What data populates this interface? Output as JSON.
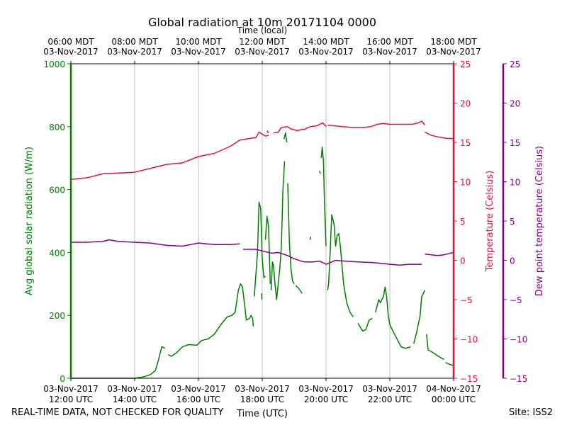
{
  "footer": {
    "left_note": "REAL-TIME DATA, NOT CHECKED FOR QUALITY",
    "site": "Site: ISS2"
  },
  "chart_data": {
    "type": "line",
    "title": "Global radiation at 10m 20171104 0000",
    "x_bottom": {
      "label": "Time (UTC)",
      "range_hours_utc": [
        12,
        24
      ],
      "ticks": [
        {
          "hour": 12,
          "l1": "03-Nov-2017",
          "l2": "12:00 UTC"
        },
        {
          "hour": 14,
          "l1": "03-Nov-2017",
          "l2": "14:00 UTC"
        },
        {
          "hour": 16,
          "l1": "03-Nov-2017",
          "l2": "16:00 UTC"
        },
        {
          "hour": 18,
          "l1": "03-Nov-2017",
          "l2": "18:00 UTC"
        },
        {
          "hour": 20,
          "l1": "03-Nov-2017",
          "l2": "20:00 UTC"
        },
        {
          "hour": 22,
          "l1": "03-Nov-2017",
          "l2": "22:00 UTC"
        },
        {
          "hour": 24,
          "l1": "04-Nov-2017",
          "l2": "00:00 UTC"
        }
      ]
    },
    "x_top": {
      "label": "Time (local)",
      "ticks": [
        {
          "hour": 12,
          "l1": "06:00 MDT",
          "l2": "03-Nov-2017"
        },
        {
          "hour": 14,
          "l1": "08:00 MDT",
          "l2": "03-Nov-2017"
        },
        {
          "hour": 16,
          "l1": "10:00 MDT",
          "l2": "03-Nov-2017"
        },
        {
          "hour": 18,
          "l1": "12:00 MDT",
          "l2": "03-Nov-2017"
        },
        {
          "hour": 20,
          "l1": "14:00 MDT",
          "l2": "03-Nov-2017"
        },
        {
          "hour": 22,
          "l1": "16:00 MDT",
          "l2": "03-Nov-2017"
        },
        {
          "hour": 24,
          "l1": "18:00 MDT",
          "l2": "03-Nov-2017"
        }
      ]
    },
    "grid": "vertical",
    "axes": [
      {
        "id": "rad",
        "label": "Avg global solar radiation (W/m)",
        "color": "#008000",
        "side": "left",
        "range": [
          0,
          1000
        ],
        "ticks": [
          "0",
          "200",
          "400",
          "600",
          "800",
          "1000"
        ]
      },
      {
        "id": "temp",
        "label": "Temperature (Celsius)",
        "color": "#dc143c",
        "side": "right",
        "range": [
          -15,
          25
        ],
        "ticks": [
          "−15",
          "−10",
          "−5",
          "0",
          "5",
          "10",
          "15",
          "20",
          "25"
        ]
      },
      {
        "id": "dew",
        "label": "Dew point temperature (Celsius)",
        "color": "#800080",
        "side": "far-right",
        "range": [
          -15,
          25
        ],
        "ticks": [
          "−15",
          "−10",
          "−5",
          "0",
          "5",
          "10",
          "15",
          "20",
          "25"
        ]
      }
    ],
    "series": [
      {
        "name": "Avg global solar radiation",
        "axis": "rad",
        "color": "#008000",
        "segments": [
          [
            [
              12.0,
              0
            ],
            [
              14.0,
              0
            ],
            [
              14.3,
              5
            ],
            [
              14.5,
              12
            ],
            [
              14.65,
              25
            ],
            [
              14.75,
              60
            ],
            [
              14.85,
              100
            ],
            [
              14.95,
              95
            ]
          ],
          [
            [
              15.05,
              75
            ],
            [
              15.15,
              70
            ],
            [
              15.3,
              80
            ],
            [
              15.5,
              100
            ],
            [
              15.7,
              107
            ],
            [
              15.95,
              105
            ],
            [
              16.1,
              120
            ],
            [
              16.3,
              125
            ],
            [
              16.5,
              140
            ],
            [
              16.7,
              170
            ],
            [
              16.9,
              195
            ],
            [
              17.05,
              200
            ],
            [
              17.15,
              210
            ],
            [
              17.25,
              280
            ],
            [
              17.32,
              300
            ],
            [
              17.38,
              290
            ],
            [
              17.45,
              230
            ],
            [
              17.5,
              185
            ],
            [
              17.6,
              190
            ],
            [
              17.65,
              200
            ],
            [
              17.7,
              190
            ],
            [
              17.72,
              165
            ]
          ],
          [
            [
              17.75,
              260
            ],
            [
              17.85,
              400
            ],
            [
              17.9,
              560
            ],
            [
              17.95,
              540
            ],
            [
              18.0,
              380
            ],
            [
              18.05,
              320
            ],
            [
              18.1,
              325
            ]
          ],
          [
            [
              17.98,
              270
            ],
            [
              17.99,
              250
            ]
          ],
          [
            [
              18.1,
              440
            ],
            [
              18.15,
              515
            ],
            [
              18.2,
              480
            ],
            [
              18.25,
              300
            ]
          ],
          [
            [
              18.28,
              280
            ],
            [
              18.32,
              370
            ],
            [
              18.35,
              360
            ],
            [
              18.4,
              300
            ],
            [
              18.45,
              250
            ],
            [
              18.5,
              300
            ],
            [
              18.55,
              350
            ],
            [
              18.6,
              420
            ],
            [
              18.65,
              600
            ],
            [
              18.7,
              690
            ]
          ],
          [
            [
              18.68,
              760
            ],
            [
              18.73,
              780
            ],
            [
              18.77,
              750
            ]
          ],
          [
            [
              18.8,
              620
            ],
            [
              18.85,
              430
            ],
            [
              18.9,
              350
            ],
            [
              18.95,
              310
            ],
            [
              19.0,
              300
            ]
          ],
          [
            [
              19.05,
              295
            ],
            [
              19.15,
              285
            ],
            [
              19.25,
              270
            ]
          ],
          [
            [
              19.5,
              440
            ],
            [
              19.52,
              450
            ]
          ],
          [
            [
              19.8,
              660
            ],
            [
              19.82,
              650
            ]
          ],
          [
            [
              19.85,
              700
            ],
            [
              19.88,
              735
            ],
            [
              19.92,
              690
            ],
            [
              19.95,
              560
            ],
            [
              20.0,
              420
            ]
          ],
          [
            [
              20.05,
              280
            ],
            [
              20.08,
              300
            ],
            [
              20.12,
              380
            ],
            [
              20.18,
              520
            ],
            [
              20.25,
              490
            ],
            [
              20.3,
              420
            ],
            [
              20.35,
              455
            ],
            [
              20.4,
              460
            ],
            [
              20.45,
              420
            ],
            [
              20.55,
              300
            ],
            [
              20.65,
              240
            ],
            [
              20.75,
              210
            ],
            [
              20.85,
              195
            ]
          ],
          [
            [
              21.0,
              175
            ],
            [
              21.15,
              150
            ],
            [
              21.25,
              155
            ],
            [
              21.35,
              185
            ],
            [
              21.45,
              190
            ]
          ],
          [
            [
              21.55,
              210
            ],
            [
              21.65,
              250
            ],
            [
              21.7,
              240
            ],
            [
              21.8,
              260
            ],
            [
              21.85,
              290
            ],
            [
              21.9,
              260
            ],
            [
              21.95,
              200
            ],
            [
              22.0,
              170
            ],
            [
              22.1,
              150
            ],
            [
              22.2,
              130
            ],
            [
              22.35,
              100
            ],
            [
              22.5,
              95
            ],
            [
              22.65,
              100
            ]
          ],
          [
            [
              22.75,
              110
            ],
            [
              22.85,
              150
            ],
            [
              22.95,
              200
            ],
            [
              23.0,
              260
            ],
            [
              23.1,
              280
            ]
          ],
          [
            [
              23.15,
              140
            ],
            [
              23.2,
              90
            ],
            [
              23.3,
              85
            ],
            [
              23.45,
              75
            ],
            [
              23.6,
              65
            ],
            [
              23.7,
              60
            ]
          ],
          [
            [
              23.75,
              50
            ],
            [
              23.85,
              45
            ],
            [
              24.0,
              40
            ]
          ]
        ]
      },
      {
        "name": "Temperature",
        "axis": "temp",
        "color": "#dc143c",
        "segments": [
          [
            [
              12.0,
              10.3
            ],
            [
              12.5,
              10.5
            ],
            [
              13.0,
              11.0
            ],
            [
              13.5,
              11.1
            ],
            [
              14.0,
              11.2
            ],
            [
              14.5,
              11.7
            ],
            [
              15.0,
              12.2
            ],
            [
              15.5,
              12.4
            ],
            [
              16.0,
              13.2
            ],
            [
              16.5,
              13.6
            ],
            [
              17.0,
              14.5
            ],
            [
              17.3,
              15.3
            ],
            [
              17.6,
              15.5
            ],
            [
              17.8,
              15.6
            ],
            [
              17.9,
              16.3
            ],
            [
              18.1,
              15.8
            ],
            [
              18.2,
              15.9
            ]
          ],
          [
            [
              18.15,
              16.5
            ],
            [
              18.2,
              16.2
            ]
          ],
          [
            [
              18.35,
              16.2
            ],
            [
              18.5,
              16.3
            ],
            [
              18.6,
              16.9
            ],
            [
              18.8,
              17.0
            ],
            [
              18.9,
              16.7
            ],
            [
              19.1,
              16.5
            ],
            [
              19.3,
              16.7
            ]
          ],
          [
            [
              19.3,
              16.6
            ],
            [
              19.5,
              17.0
            ],
            [
              19.7,
              17.1
            ],
            [
              19.9,
              17.5
            ],
            [
              20.0,
              17.0
            ]
          ],
          [
            [
              20.05,
              17.2
            ],
            [
              20.3,
              17.1
            ],
            [
              20.5,
              17.0
            ],
            [
              20.8,
              16.9
            ],
            [
              21.2,
              16.9
            ],
            [
              21.4,
              17.0
            ],
            [
              21.6,
              17.3
            ],
            [
              21.8,
              17.4
            ],
            [
              22.0,
              17.3
            ],
            [
              22.2,
              17.3
            ],
            [
              22.5,
              17.3
            ],
            [
              22.7,
              17.3
            ],
            [
              22.9,
              17.5
            ],
            [
              23.0,
              17.7
            ],
            [
              23.1,
              17.2
            ]
          ],
          [
            [
              23.1,
              16.3
            ],
            [
              23.3,
              15.9
            ],
            [
              23.5,
              15.7
            ],
            [
              23.8,
              15.5
            ],
            [
              24.0,
              15.5
            ]
          ]
        ]
      },
      {
        "name": "Dew point temperature",
        "axis": "dew",
        "color": "#800080",
        "segments": [
          [
            [
              12.0,
              2.3
            ],
            [
              12.5,
              2.3
            ],
            [
              13.0,
              2.4
            ],
            [
              13.2,
              2.6
            ],
            [
              13.5,
              2.4
            ],
            [
              14.0,
              2.3
            ],
            [
              14.5,
              2.2
            ],
            [
              15.0,
              1.9
            ],
            [
              15.5,
              1.8
            ],
            [
              16.0,
              2.2
            ],
            [
              16.5,
              2.0
            ],
            [
              17.0,
              2.0
            ],
            [
              17.3,
              2.1
            ]
          ],
          [
            [
              17.4,
              1.4
            ],
            [
              17.6,
              1.4
            ],
            [
              17.8,
              1.4
            ],
            [
              18.0,
              1.2
            ],
            [
              18.3,
              0.9
            ],
            [
              18.5,
              1.0
            ],
            [
              18.8,
              0.6
            ],
            [
              19.0,
              0.2
            ],
            [
              19.3,
              -0.2
            ],
            [
              19.6,
              -0.2
            ],
            [
              19.8,
              -0.1
            ],
            [
              20.0,
              -0.5
            ],
            [
              20.3,
              0.0
            ],
            [
              20.6,
              -0.1
            ],
            [
              21.0,
              -0.2
            ],
            [
              21.5,
              -0.3
            ],
            [
              22.0,
              -0.5
            ],
            [
              22.3,
              -0.6
            ],
            [
              22.6,
              -0.5
            ],
            [
              22.8,
              -0.5
            ],
            [
              23.0,
              -0.5
            ]
          ],
          [
            [
              23.1,
              0.8
            ],
            [
              23.3,
              0.7
            ],
            [
              23.5,
              0.6
            ],
            [
              23.7,
              0.7
            ],
            [
              24.0,
              1.0
            ]
          ]
        ]
      }
    ]
  }
}
